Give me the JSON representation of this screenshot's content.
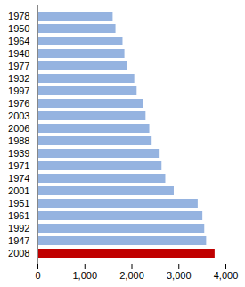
{
  "chart_data": {
    "type": "bar",
    "orientation": "horizontal",
    "categories": [
      "1978",
      "1950",
      "1964",
      "1948",
      "1977",
      "1932",
      "1997",
      "1976",
      "2003",
      "2006",
      "1988",
      "1939",
      "1971",
      "1974",
      "2001",
      "1951",
      "1961",
      "1992",
      "1947",
      "2008"
    ],
    "values": [
      1600,
      1660,
      1810,
      1850,
      1900,
      2060,
      2110,
      2250,
      2300,
      2380,
      2430,
      2600,
      2640,
      2720,
      2900,
      3410,
      3510,
      3550,
      3590,
      3770
    ],
    "colors": [
      "#95b3e0",
      "#95b3e0",
      "#95b3e0",
      "#95b3e0",
      "#95b3e0",
      "#95b3e0",
      "#95b3e0",
      "#95b3e0",
      "#95b3e0",
      "#95b3e0",
      "#95b3e0",
      "#95b3e0",
      "#95b3e0",
      "#95b3e0",
      "#95b3e0",
      "#95b3e0",
      "#95b3e0",
      "#95b3e0",
      "#95b3e0",
      "#c00000"
    ],
    "xlim": [
      0,
      4000
    ],
    "xticks": [
      0,
      {
        "value": 1000,
        "label": "1,000"
      },
      {
        "value": 2000,
        "label": "2,000"
      },
      {
        "value": 3000,
        "label": "3,000"
      },
      {
        "value": 4000,
        "label": "4,000"
      }
    ],
    "grid": false
  }
}
